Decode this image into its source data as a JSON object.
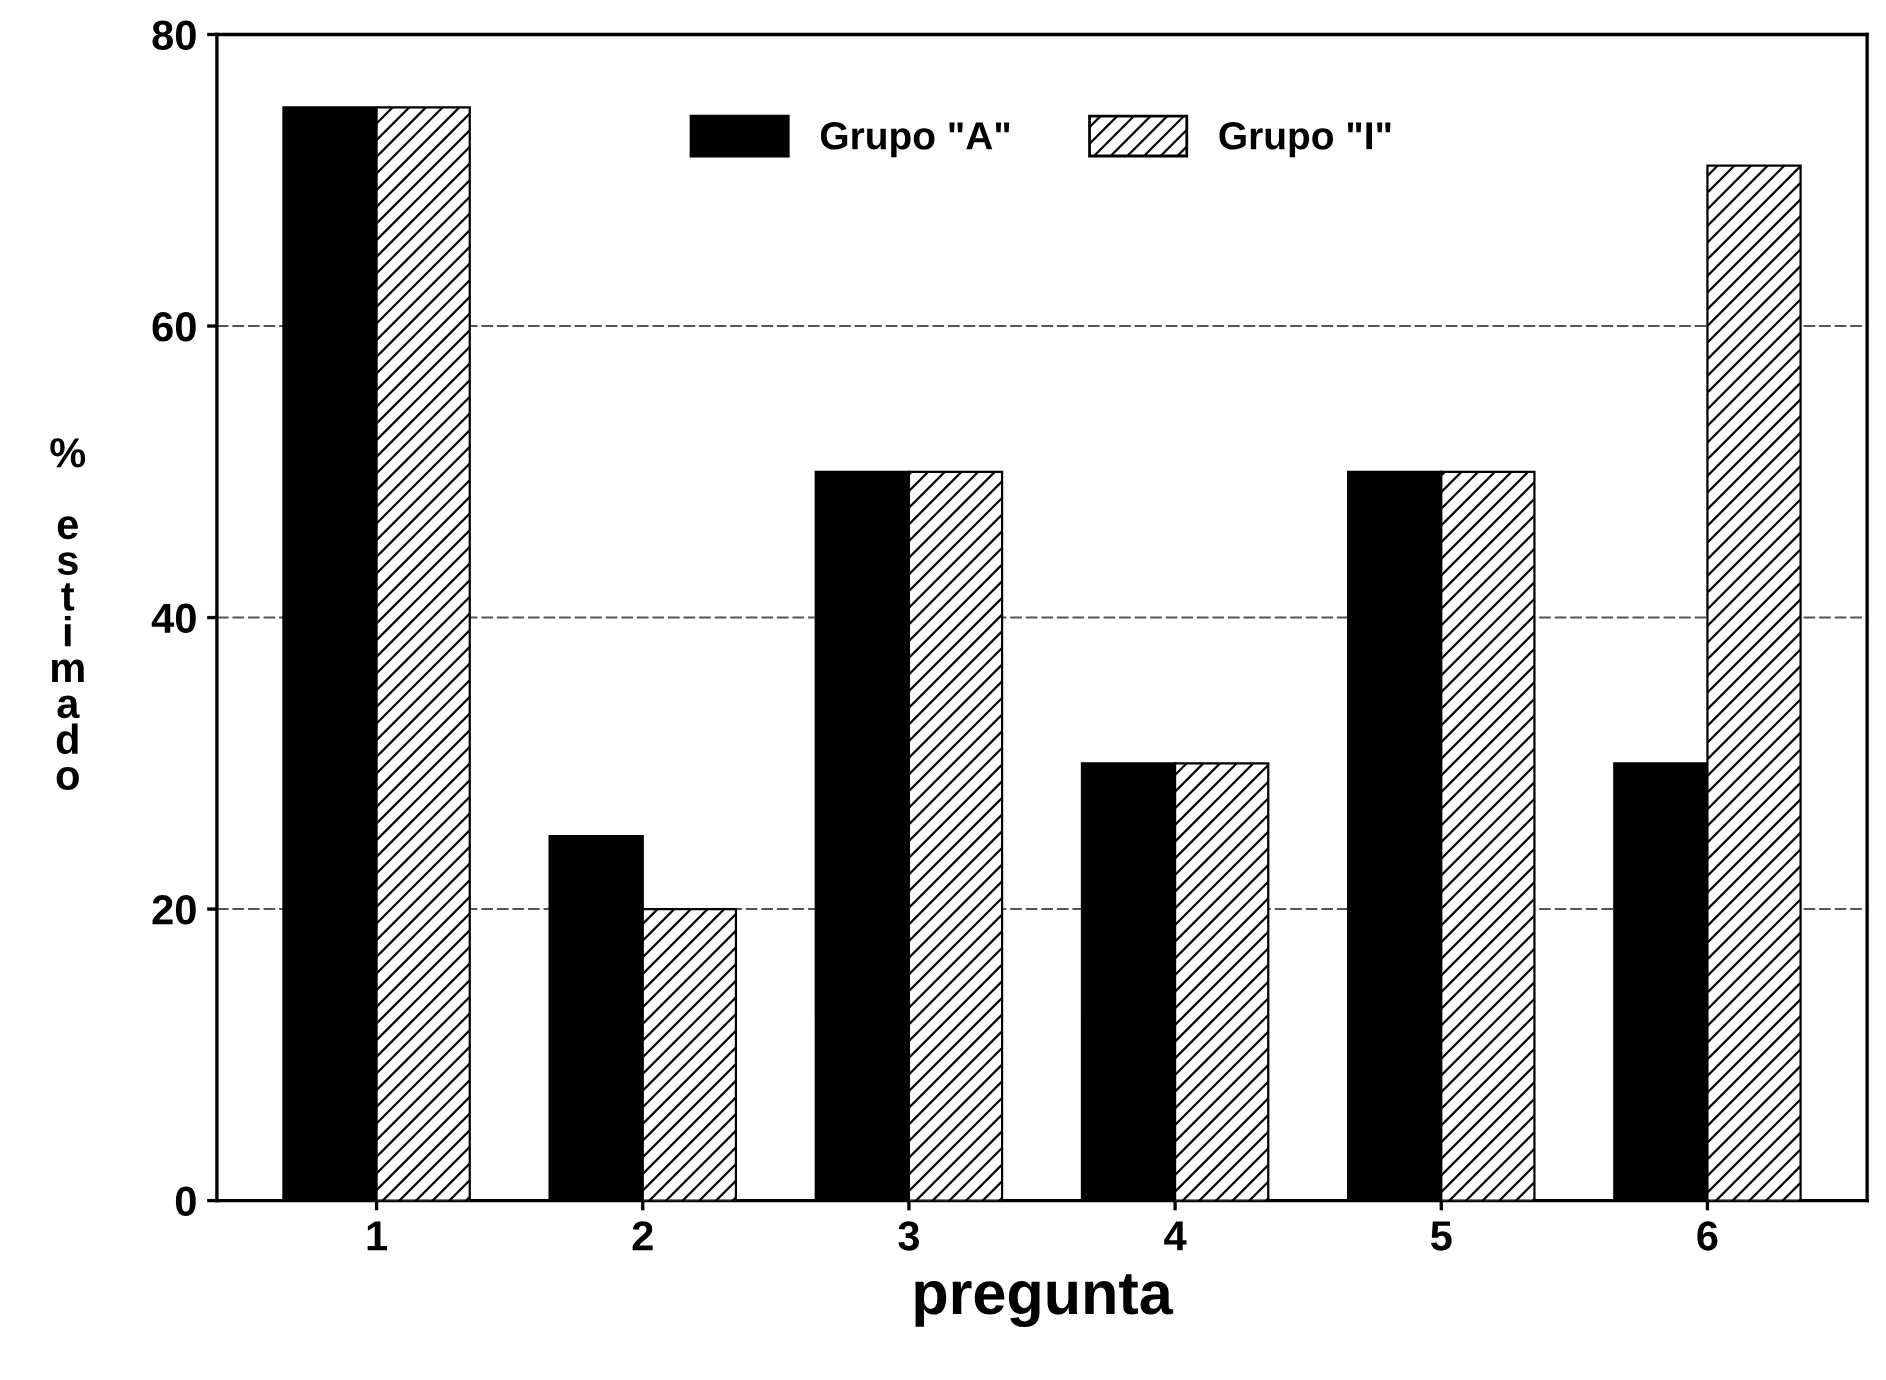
{
  "chart_data": {
    "type": "bar",
    "xlabel": "pregunta",
    "ylabel": "% estimado",
    "categories": [
      "1",
      "2",
      "3",
      "4",
      "5",
      "6"
    ],
    "series": [
      {
        "name": "Grupo \"A\"",
        "color": "#000000",
        "values": [
          75,
          25,
          50,
          30,
          50,
          30
        ]
      },
      {
        "name": "Grupo \"I\"",
        "color": "#000000",
        "values": [
          75,
          20,
          50,
          30,
          50,
          71
        ]
      }
    ],
    "ylim": [
      0,
      80
    ],
    "yticks": [
      0,
      20,
      40,
      60,
      80
    ],
    "grid": "y",
    "legend": "top"
  }
}
